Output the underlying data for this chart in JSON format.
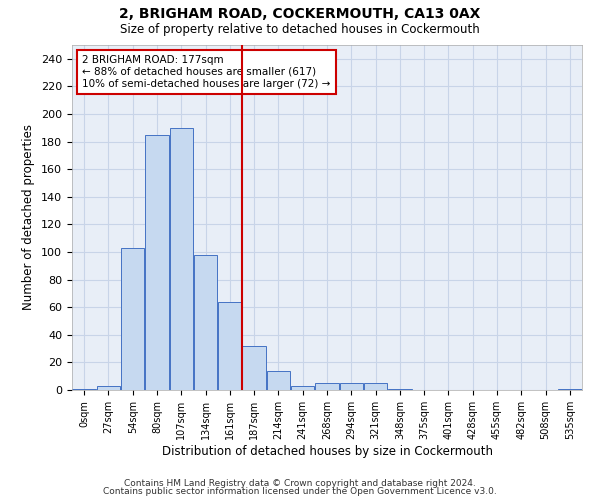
{
  "title1": "2, BRIGHAM ROAD, COCKERMOUTH, CA13 0AX",
  "title2": "Size of property relative to detached houses in Cockermouth",
  "xlabel": "Distribution of detached houses by size in Cockermouth",
  "ylabel": "Number of detached properties",
  "bin_labels": [
    "0sqm",
    "27sqm",
    "54sqm",
    "80sqm",
    "107sqm",
    "134sqm",
    "161sqm",
    "187sqm",
    "214sqm",
    "241sqm",
    "268sqm",
    "294sqm",
    "321sqm",
    "348sqm",
    "375sqm",
    "401sqm",
    "428sqm",
    "455sqm",
    "482sqm",
    "508sqm",
    "535sqm"
  ],
  "bar_heights": [
    1,
    3,
    103,
    185,
    190,
    98,
    64,
    32,
    14,
    3,
    5,
    5,
    5,
    1,
    0,
    0,
    0,
    0,
    0,
    0,
    1
  ],
  "bar_color": "#c6d9f0",
  "bar_edge_color": "#4472c4",
  "vline_x": 6.5,
  "vline_color": "#cc0000",
  "annotation_text": "2 BRIGHAM ROAD: 177sqm\n← 88% of detached houses are smaller (617)\n10% of semi-detached houses are larger (72) →",
  "annotation_box_color": "#ffffff",
  "annotation_box_edge": "#cc0000",
  "ylim": [
    0,
    250
  ],
  "yticks": [
    0,
    20,
    40,
    60,
    80,
    100,
    120,
    140,
    160,
    180,
    200,
    220,
    240
  ],
  "grid_color": "#c8d4e8",
  "background_color": "#e8eef7",
  "footer1": "Contains HM Land Registry data © Crown copyright and database right 2024.",
  "footer2": "Contains public sector information licensed under the Open Government Licence v3.0."
}
